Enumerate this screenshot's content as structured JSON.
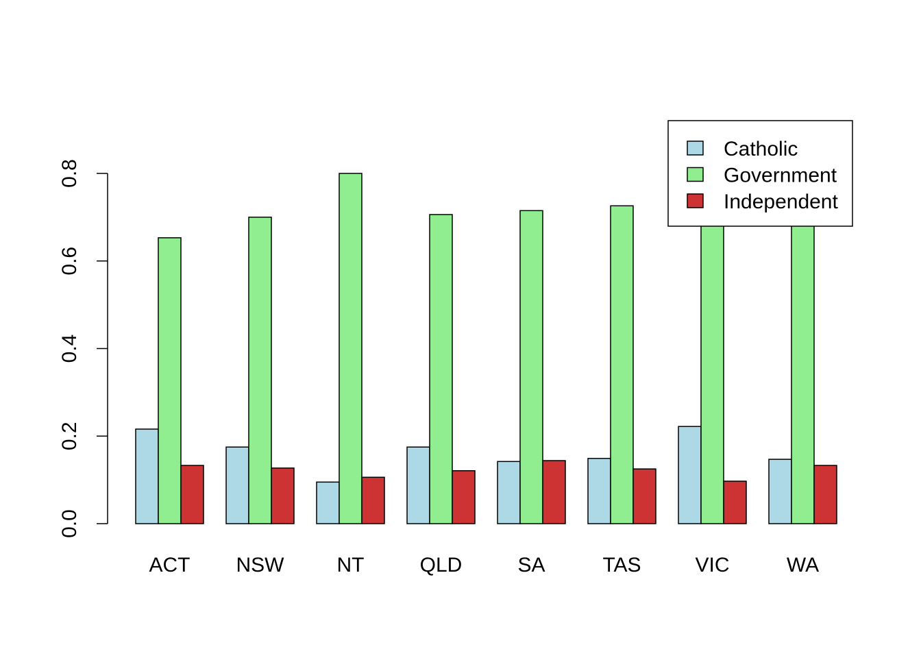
{
  "chart_data": {
    "type": "bar",
    "title": "",
    "xlabel": "",
    "ylabel": "",
    "categories": [
      "ACT",
      "NSW",
      "NT",
      "QLD",
      "SA",
      "TAS",
      "VIC",
      "WA"
    ],
    "series": [
      {
        "name": "Catholic",
        "color": "#ADD8E6",
        "values": [
          0.216,
          0.175,
          0.095,
          0.175,
          0.142,
          0.149,
          0.222,
          0.147
        ]
      },
      {
        "name": "Government",
        "color": "#90EE90",
        "values": [
          0.653,
          0.7,
          0.8,
          0.706,
          0.715,
          0.726,
          0.681,
          0.72
        ]
      },
      {
        "name": "Independent",
        "color": "#CD3333",
        "values": [
          0.133,
          0.127,
          0.106,
          0.121,
          0.144,
          0.125,
          0.097,
          0.133
        ]
      }
    ],
    "ylim": [
      0,
      0.8
    ],
    "yticks": [
      "0.0",
      "0.2",
      "0.4",
      "0.6",
      "0.8"
    ],
    "legend_position": "top-right",
    "grid": false
  }
}
